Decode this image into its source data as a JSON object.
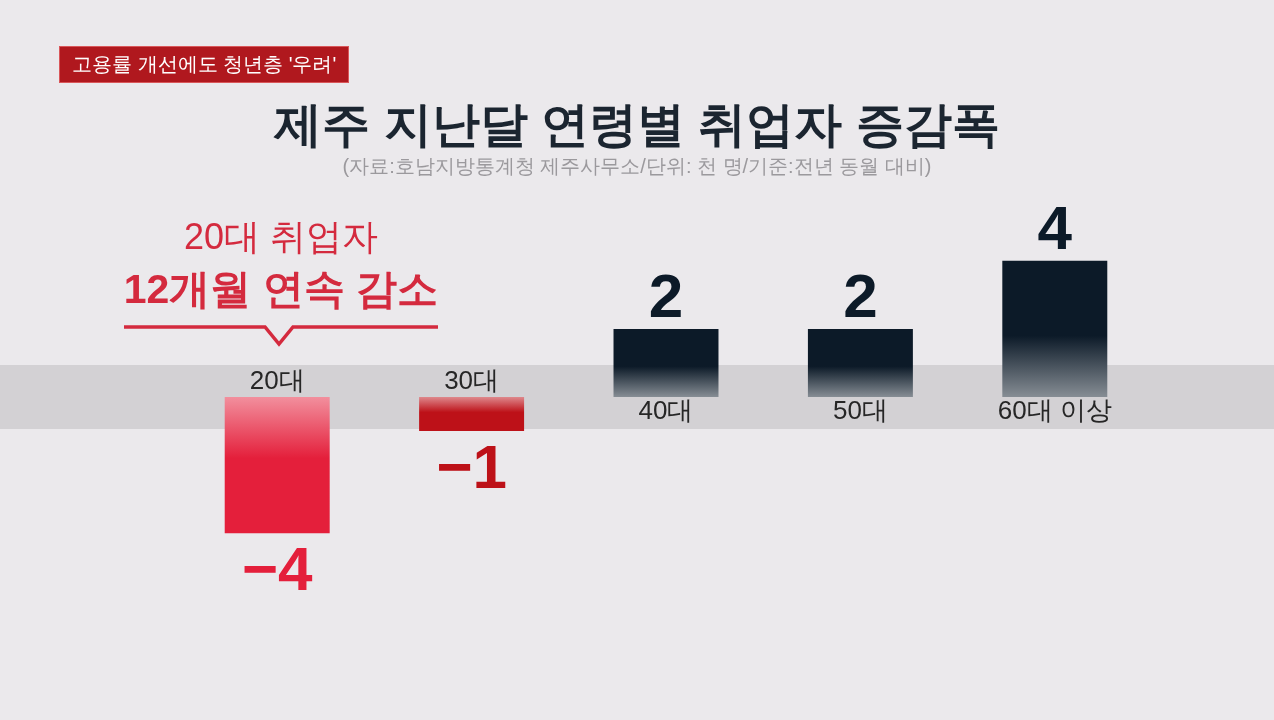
{
  "chart_data": {
    "type": "bar",
    "title": "제주 지난달 연령별 취업자 증감폭",
    "subtitle": "(자료:호남지방통계청 제주사무소/단위: 천 명/기준:전년 동월 대비)",
    "categories": [
      "20대",
      "30대",
      "40대",
      "50대",
      "60대 이상"
    ],
    "values": [
      -4,
      -1,
      2,
      2,
      4
    ],
    "colors": [
      "#e41f3b",
      "#bd1118",
      "#0c1a28",
      "#0c1a28",
      "#0c1a28"
    ],
    "data_labels": true,
    "tick_labels": "x",
    "annotations": [
      "고용률 개선에도 청년층 '우려'",
      "20대 취업자\n12개월 연속 감소"
    ]
  }
}
